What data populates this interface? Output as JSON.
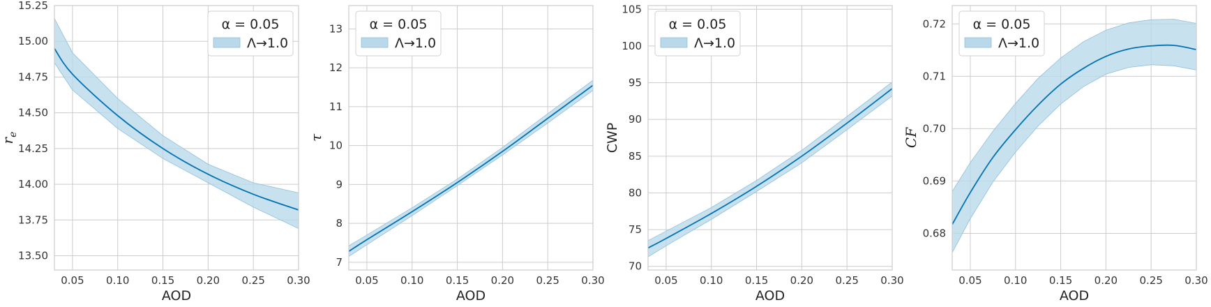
{
  "figure": {
    "band_color": "#b9d8ea",
    "line_color": "#0072b2"
  },
  "legend": {
    "title": "α = 0.05",
    "entry": "Λ→1.0"
  },
  "chart_data": [
    {
      "type": "line",
      "xlabel": "AOD",
      "ylabel": "r",
      "ylabel_sub": "e",
      "xlim": [
        0.03,
        0.3
      ],
      "ylim": [
        13.4,
        15.25
      ],
      "xticks": [
        0.05,
        0.1,
        0.15,
        0.2,
        0.25,
        0.3
      ],
      "xtick_labels": [
        "0.05",
        "0.10",
        "0.15",
        "0.20",
        "0.25",
        "0.30"
      ],
      "yticks": [
        13.5,
        13.75,
        14.0,
        14.25,
        14.5,
        14.75,
        15.0,
        15.25
      ],
      "ytick_labels": [
        "13.50",
        "13.75",
        "14.00",
        "14.25",
        "14.50",
        "14.75",
        "15.00",
        "15.25"
      ],
      "grid": true,
      "legend_position": "top-right",
      "x": [
        0.03,
        0.05,
        0.1,
        0.15,
        0.2,
        0.25,
        0.3
      ],
      "y": [
        14.95,
        14.77,
        14.48,
        14.25,
        14.07,
        13.93,
        13.82
      ],
      "y_lower": [
        14.85,
        14.66,
        14.39,
        14.18,
        14.01,
        13.84,
        13.69
      ],
      "y_upper": [
        15.16,
        14.92,
        14.6,
        14.34,
        14.14,
        14.01,
        13.94
      ]
    },
    {
      "type": "line",
      "xlabel": "AOD",
      "ylabel": "τ",
      "xlim": [
        0.03,
        0.3
      ],
      "ylim": [
        6.8,
        13.6
      ],
      "xticks": [
        0.05,
        0.1,
        0.15,
        0.2,
        0.25,
        0.3
      ],
      "xtick_labels": [
        "0.05",
        "0.10",
        "0.15",
        "0.20",
        "0.25",
        "0.30"
      ],
      "yticks": [
        7,
        8,
        9,
        10,
        11,
        12,
        13
      ],
      "ytick_labels": [
        "7",
        "8",
        "9",
        "10",
        "11",
        "12",
        "13"
      ],
      "grid": true,
      "legend_position": "top-left",
      "x": [
        0.03,
        0.05,
        0.1,
        0.15,
        0.2,
        0.25,
        0.3
      ],
      "y": [
        7.28,
        7.58,
        8.3,
        9.05,
        9.85,
        10.7,
        11.55
      ],
      "y_lower": [
        7.15,
        7.45,
        8.2,
        8.97,
        9.76,
        10.58,
        11.42
      ],
      "y_upper": [
        7.42,
        7.7,
        8.4,
        9.14,
        9.95,
        10.82,
        11.68
      ]
    },
    {
      "type": "line",
      "xlabel": "AOD",
      "ylabel": "CWP",
      "xlim": [
        0.03,
        0.3
      ],
      "ylim": [
        69.5,
        105.5
      ],
      "xticks": [
        0.05,
        0.1,
        0.15,
        0.2,
        0.25,
        0.3
      ],
      "xtick_labels": [
        "0.05",
        "0.10",
        "0.15",
        "0.20",
        "0.25",
        "0.30"
      ],
      "yticks": [
        70,
        75,
        80,
        85,
        90,
        95,
        100,
        105
      ],
      "ytick_labels": [
        "70",
        "75",
        "80",
        "85",
        "90",
        "95",
        "100",
        "105"
      ],
      "grid": true,
      "legend_position": "top-left",
      "x": [
        0.03,
        0.05,
        0.1,
        0.15,
        0.2,
        0.25,
        0.3
      ],
      "y": [
        72.5,
        73.8,
        77.2,
        80.9,
        85.0,
        89.5,
        94.2
      ],
      "y_lower": [
        71.3,
        72.8,
        76.4,
        80.2,
        84.1,
        88.6,
        93.2
      ],
      "y_upper": [
        73.5,
        74.8,
        78.0,
        81.7,
        85.8,
        90.4,
        95.1
      ]
    },
    {
      "type": "line",
      "xlabel": "AOD",
      "ylabel": "CF",
      "xlim": [
        0.03,
        0.3
      ],
      "ylim": [
        0.673,
        0.7235
      ],
      "xticks": [
        0.05,
        0.1,
        0.15,
        0.2,
        0.25,
        0.3
      ],
      "xtick_labels": [
        "0.05",
        "0.10",
        "0.15",
        "0.20",
        "0.25",
        "0.30"
      ],
      "yticks": [
        0.68,
        0.69,
        0.7,
        0.71,
        0.72
      ],
      "ytick_labels": [
        "0.68",
        "0.69",
        "0.70",
        "0.71",
        "0.72"
      ],
      "grid": true,
      "legend_position": "top-left",
      "x": [
        0.03,
        0.05,
        0.075,
        0.1,
        0.125,
        0.15,
        0.175,
        0.2,
        0.225,
        0.25,
        0.275,
        0.3
      ],
      "y": [
        0.6817,
        0.6878,
        0.6945,
        0.6998,
        0.7045,
        0.7085,
        0.7115,
        0.7138,
        0.7152,
        0.7158,
        0.7159,
        0.7151
      ],
      "y_lower": [
        0.6763,
        0.6828,
        0.6898,
        0.6955,
        0.7005,
        0.7047,
        0.708,
        0.7104,
        0.7117,
        0.7122,
        0.712,
        0.7112
      ],
      "y_upper": [
        0.688,
        0.6935,
        0.6995,
        0.7048,
        0.7096,
        0.7135,
        0.7166,
        0.7188,
        0.7202,
        0.7208,
        0.7209,
        0.7201
      ]
    }
  ]
}
